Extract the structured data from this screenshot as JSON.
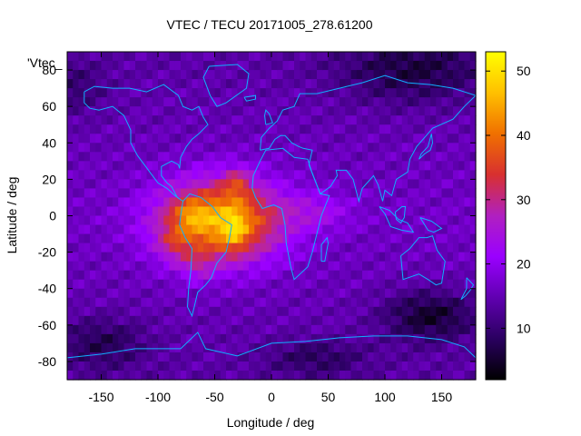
{
  "chart_data": {
    "type": "heatmap",
    "title": "VTEC / TECU 20171005_278.61200",
    "key_label": "'Vtec_",
    "xlabel": "Longitude / deg",
    "ylabel": "Latitude / deg",
    "xlim": [
      -180,
      180
    ],
    "ylim": [
      -90,
      90
    ],
    "x_ticks": [
      -150,
      -100,
      -50,
      0,
      50,
      100,
      150
    ],
    "y_ticks": [
      -80,
      -60,
      -40,
      -20,
      0,
      20,
      40,
      60,
      80
    ],
    "colorbar": {
      "range": [
        2,
        53
      ],
      "ticks": [
        10,
        20,
        30,
        40,
        50
      ],
      "palette": [
        "#000000",
        "#2a0060",
        "#6000b0",
        "#9a00ff",
        "#b020c0",
        "#d83030",
        "#f07000",
        "#ffc000",
        "#ffff00"
      ]
    },
    "grid_step_deg": 5,
    "features": {
      "background_tec": 14,
      "anomaly": {
        "lon": -45,
        "lat": -2,
        "peak_tec": 52,
        "note": "daytime equatorial crest over South America / Atlantic"
      },
      "low_tec_regions": [
        "East Asia / North Pacific high latitudes",
        "South Pacific / Southern Ocean near Australia",
        "Antarctic region"
      ]
    },
    "overlay": "continent outlines (cyan)"
  }
}
